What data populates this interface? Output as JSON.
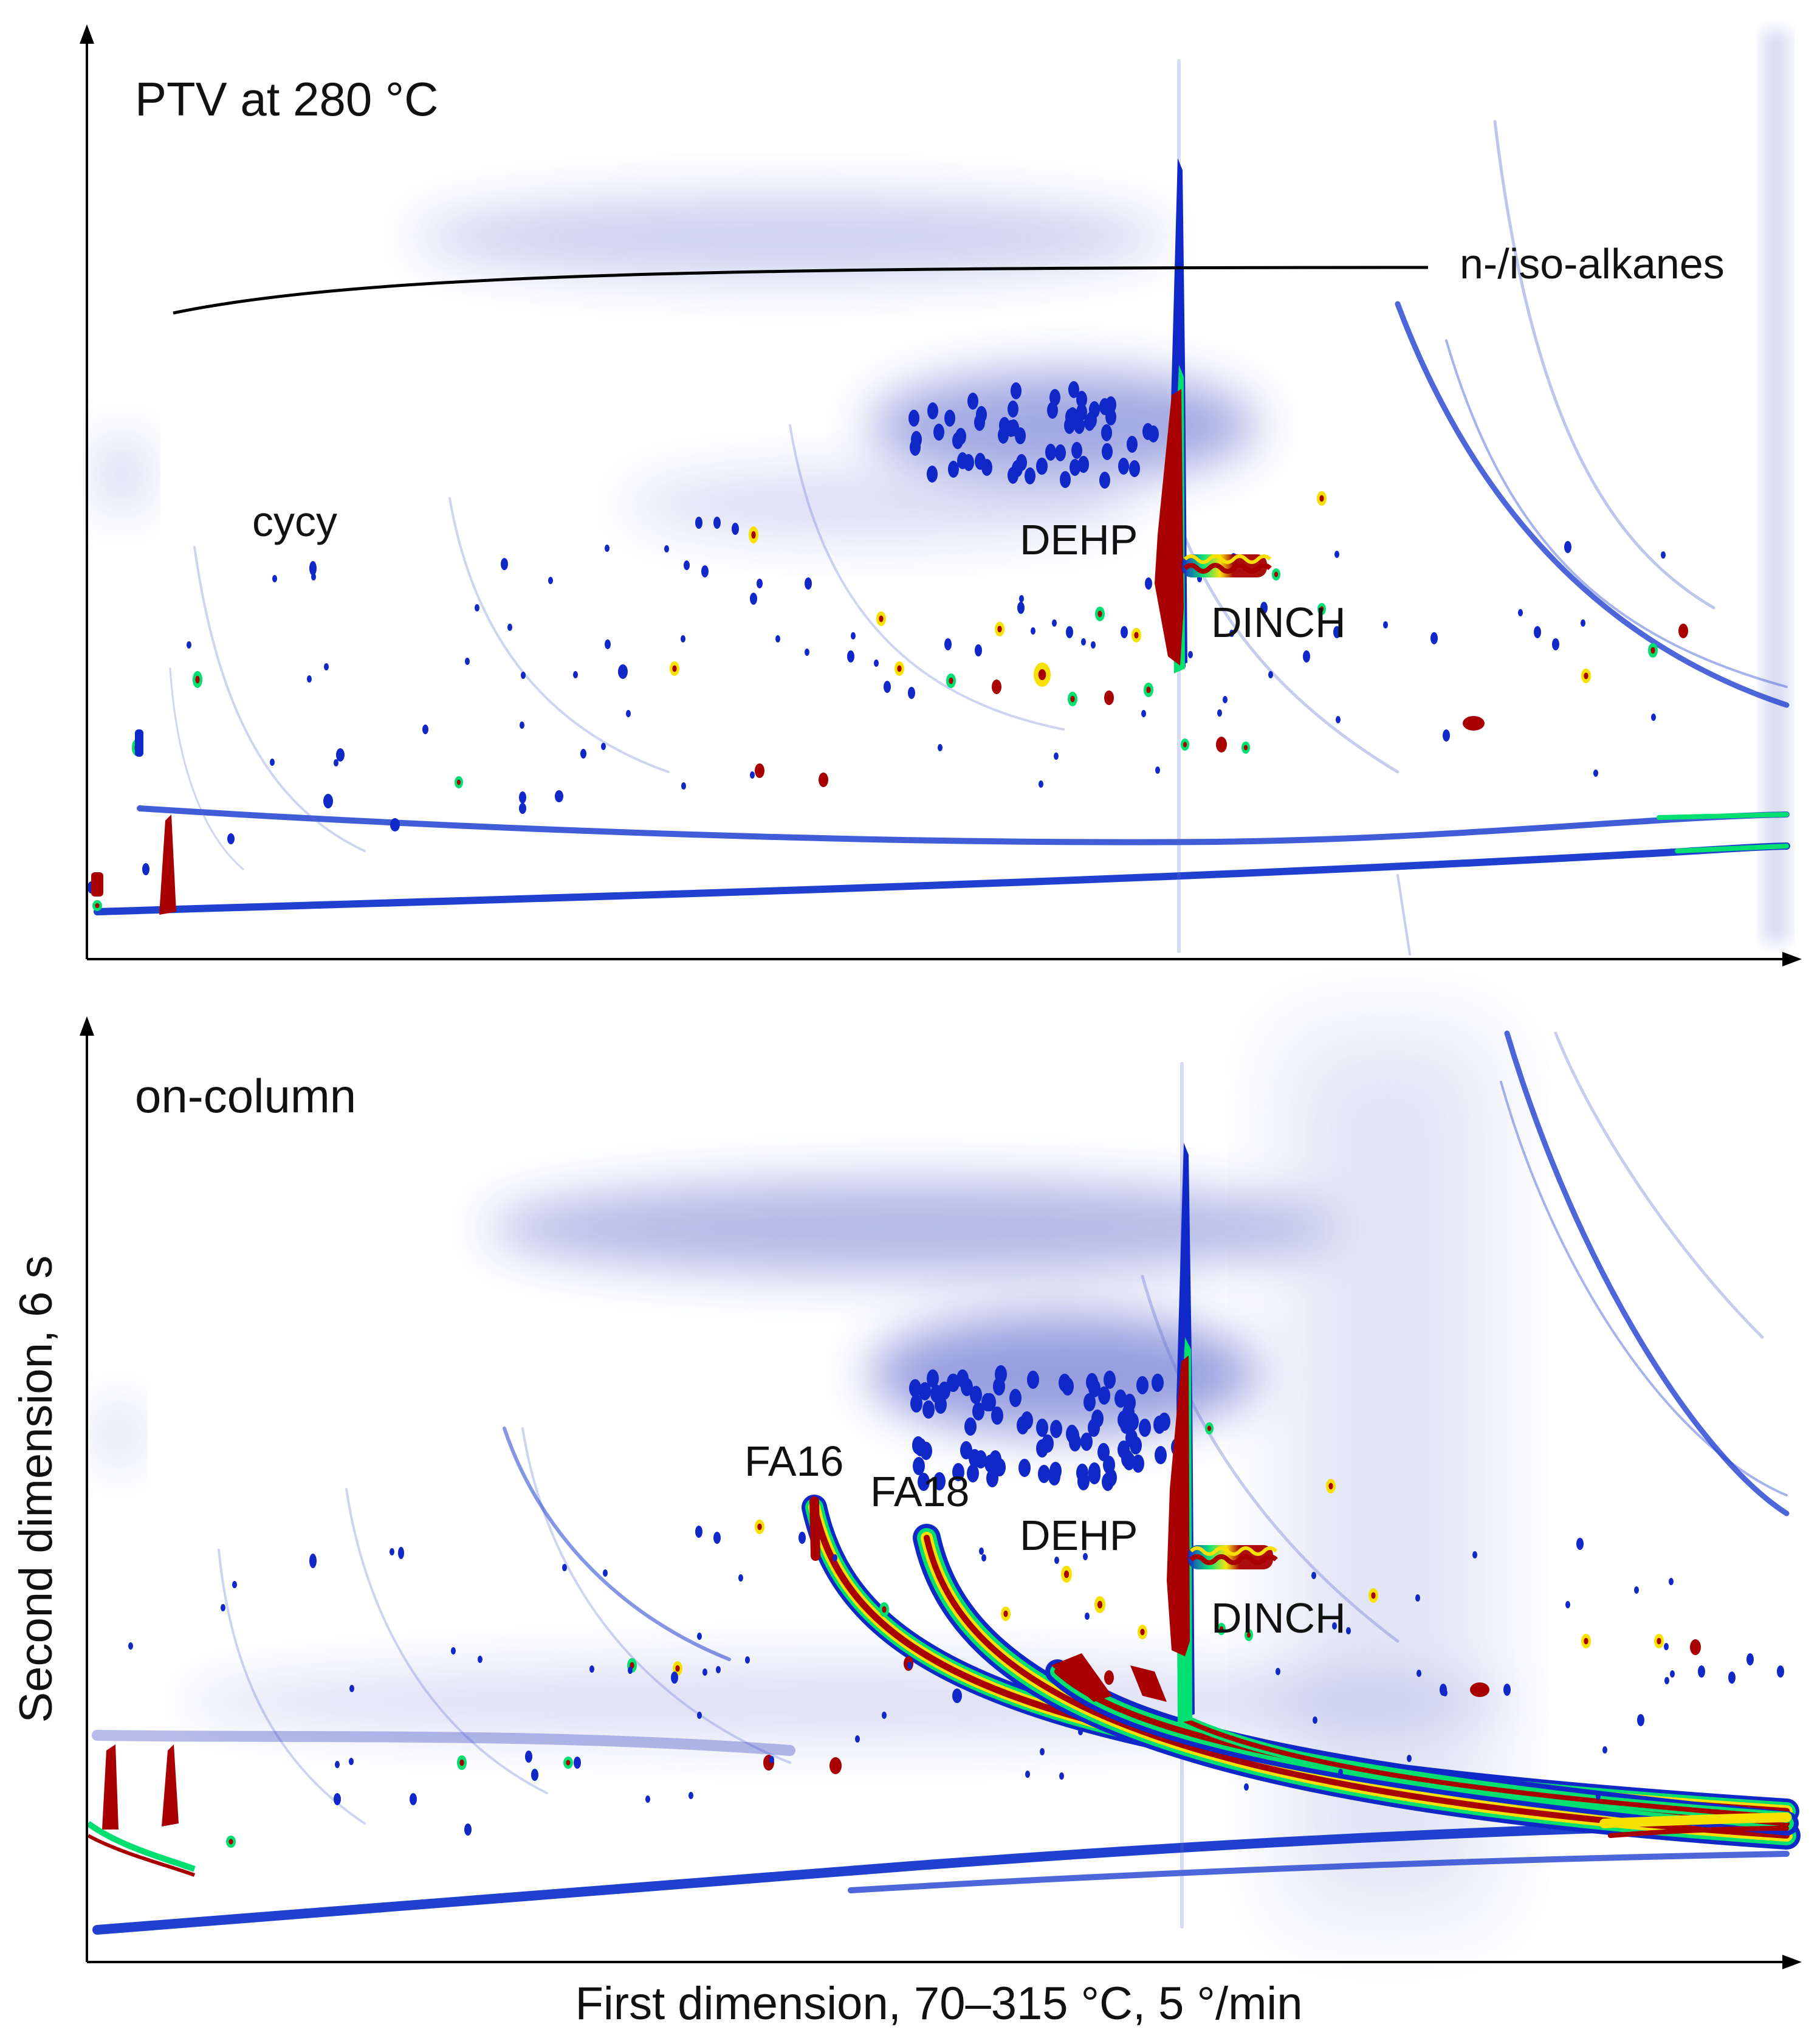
{
  "chart_data": [
    {
      "type": "heatmap",
      "panel": "top",
      "title": "PTV at 280 °C",
      "xlabel": "",
      "ylabel": "",
      "annotations": [
        "n-/iso-alkanes",
        "cycy",
        "DEHP",
        "DINCH"
      ],
      "peaks": [
        {
          "name": "DEHP",
          "kind": "saturated column",
          "intensity": "high"
        },
        {
          "name": "DINCH",
          "kind": "saturated cluster",
          "intensity": "high"
        },
        {
          "name": "cycy",
          "kind": "spot",
          "intensity": "low"
        }
      ],
      "colormap": [
        "#ffffff",
        "#1028c8",
        "#00e070",
        "#f8e000",
        "#a80000"
      ],
      "grid": false
    },
    {
      "type": "heatmap",
      "panel": "bottom",
      "title": "on-column",
      "xlabel": "First dimension, 70–315 °C, 5 °/min",
      "ylabel": "Second dimension, 6 s",
      "annotations": [
        "FA16",
        "FA18",
        "DEHP",
        "DINCH"
      ],
      "peaks": [
        {
          "name": "FA16",
          "kind": "tailing band",
          "intensity": "high"
        },
        {
          "name": "FA18",
          "kind": "tailing band",
          "intensity": "high"
        },
        {
          "name": "DEHP",
          "kind": "saturated column",
          "intensity": "high"
        },
        {
          "name": "DINCH",
          "kind": "saturated cluster",
          "intensity": "high"
        }
      ],
      "colormap": [
        "#ffffff",
        "#1028c8",
        "#00e070",
        "#f8e000",
        "#a80000"
      ],
      "grid": false
    }
  ],
  "colors": {
    "low": "#1028c8",
    "mid": "#00e070",
    "high": "#f8e000",
    "saturated": "#a80000",
    "axis": "#000000"
  }
}
